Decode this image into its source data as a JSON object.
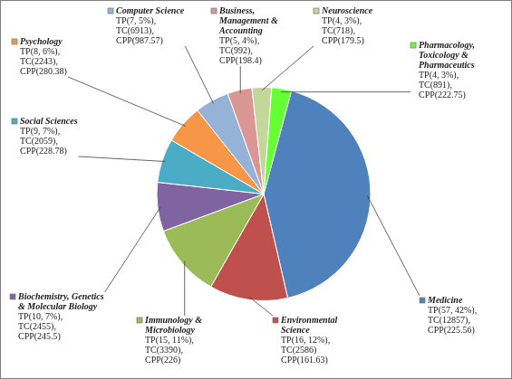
{
  "chart_data": {
    "type": "pie",
    "categories": [
      "Medicine",
      "Environmental Science",
      "Immunology & Microbiology",
      "Biochemistry, Genetics & Molecular Biology",
      "Social Sciences",
      "Psychology",
      "Computer Science",
      "Business, Management & Accounting",
      "Neuroscience",
      "Pharmacology, Toxicology & Pharmaceutics"
    ],
    "values": [
      57,
      16,
      15,
      10,
      9,
      8,
      7,
      5,
      4,
      4
    ],
    "value_labels": [
      "TP(57, 42%),\nTC(12857),\nCPP(225.56)",
      "TP(16, 12%),\nTC(2586)\nCPP(161.63)",
      "TP(15, 11%),\nTC(3390),\nCPP(226)",
      "TP(10, 7%),\nTC(2455),\nCPP(245.5)",
      "TP(9, 7%),\nTC(2059),\nCPP(228.78)",
      "TP(8, 6%),\nTC(2243),\nCPP(280.38)",
      "TP(7, 5%),\nTC(6913),\nCPP(987.57)",
      "TP(5, 4%),\nTC(992),\nCPP(198.4)",
      "TP(4, 3%),\nTC(718),\nCPP(179.5)",
      "TP(4, 3%),\nTC(891),\nCPP(222.75)"
    ],
    "colors": [
      "#4f81bd",
      "#c0504d",
      "#9bbb59",
      "#8064a2",
      "#4bacc6",
      "#f79646",
      "#95b3d7",
      "#d99694",
      "#c4d79b",
      "#66ff33"
    ],
    "data_labels": true
  }
}
